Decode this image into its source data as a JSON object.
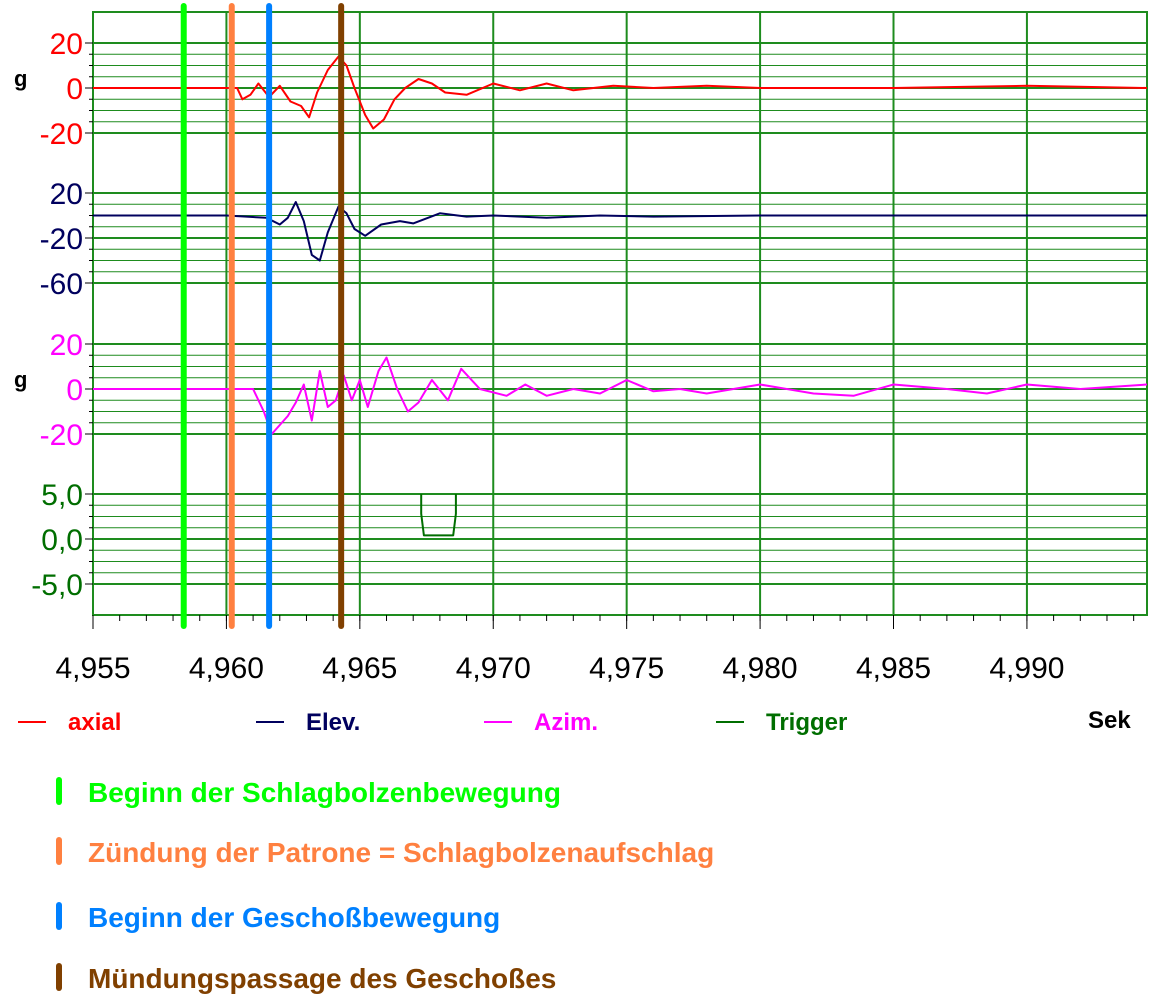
{
  "chart_data": {
    "type": "line",
    "xlabel": "Sek",
    "xlim": [
      4.955,
      4.9945
    ],
    "x_ticks": [
      "4,955",
      "4,960",
      "4,965",
      "4,970",
      "4,975",
      "4,980",
      "4,985",
      "4,990"
    ],
    "grid": true,
    "grid_color": "#1e8c1e",
    "series": [
      {
        "key": "axial",
        "name": "axial",
        "color": "#ff0000",
        "unit": "g",
        "y_ticks": [
          "20",
          "0",
          "-20"
        ],
        "ylim": [
          -20,
          20
        ],
        "points": [
          [
            4.955,
            0
          ],
          [
            4.9604,
            0
          ],
          [
            4.9606,
            -5
          ],
          [
            4.9609,
            -3
          ],
          [
            4.9612,
            2
          ],
          [
            4.9616,
            -4
          ],
          [
            4.962,
            1
          ],
          [
            4.9624,
            -6
          ],
          [
            4.9628,
            -8
          ],
          [
            4.9631,
            -13
          ],
          [
            4.9634,
            -2
          ],
          [
            4.9638,
            8
          ],
          [
            4.9642,
            14
          ],
          [
            4.9645,
            10
          ],
          [
            4.9648,
            0
          ],
          [
            4.9652,
            -12
          ],
          [
            4.9655,
            -18
          ],
          [
            4.9659,
            -14
          ],
          [
            4.9663,
            -5
          ],
          [
            4.9667,
            0
          ],
          [
            4.9672,
            4
          ],
          [
            4.9677,
            2
          ],
          [
            4.9682,
            -2
          ],
          [
            4.969,
            -3
          ],
          [
            4.97,
            2
          ],
          [
            4.971,
            -1
          ],
          [
            4.972,
            2
          ],
          [
            4.973,
            -1
          ],
          [
            4.9745,
            1
          ],
          [
            4.976,
            0
          ],
          [
            4.978,
            1
          ],
          [
            4.98,
            0
          ],
          [
            4.985,
            0
          ],
          [
            4.99,
            1
          ],
          [
            4.9945,
            0
          ]
        ]
      },
      {
        "key": "elev",
        "name": "Elev.",
        "color": "#00005e",
        "unit": "",
        "y_ticks": [
          "20",
          "-20",
          "-60"
        ],
        "ylim": [
          -60,
          20
        ],
        "points": [
          [
            4.955,
            0
          ],
          [
            4.96,
            0
          ],
          [
            4.9615,
            -2
          ],
          [
            4.962,
            -8
          ],
          [
            4.9623,
            -2
          ],
          [
            4.9626,
            12
          ],
          [
            4.9629,
            -5
          ],
          [
            4.9632,
            -35
          ],
          [
            4.9635,
            -40
          ],
          [
            4.9638,
            -15
          ],
          [
            4.9642,
            8
          ],
          [
            4.9645,
            2
          ],
          [
            4.9648,
            -12
          ],
          [
            4.9652,
            -18
          ],
          [
            4.9658,
            -8
          ],
          [
            4.9665,
            -5
          ],
          [
            4.967,
            -7
          ],
          [
            4.968,
            2
          ],
          [
            4.969,
            -1
          ],
          [
            4.97,
            0
          ],
          [
            4.972,
            -2
          ],
          [
            4.974,
            0
          ],
          [
            4.976,
            -1
          ],
          [
            4.98,
            0
          ],
          [
            4.985,
            0
          ],
          [
            4.99,
            0
          ],
          [
            4.9945,
            0
          ]
        ]
      },
      {
        "key": "azim",
        "name": "Azim.",
        "color": "#ff00ff",
        "unit": "g",
        "y_ticks": [
          "20",
          "0",
          "-20"
        ],
        "ylim": [
          -20,
          20
        ],
        "points": [
          [
            4.955,
            0
          ],
          [
            4.961,
            0
          ],
          [
            4.9614,
            -10
          ],
          [
            4.9617,
            -20
          ],
          [
            4.962,
            -16
          ],
          [
            4.9623,
            -12
          ],
          [
            4.9626,
            -6
          ],
          [
            4.9629,
            2
          ],
          [
            4.9632,
            -14
          ],
          [
            4.9635,
            8
          ],
          [
            4.9638,
            -8
          ],
          [
            4.9641,
            -5
          ],
          [
            4.9644,
            6
          ],
          [
            4.9647,
            -5
          ],
          [
            4.965,
            4
          ],
          [
            4.9653,
            -8
          ],
          [
            4.9657,
            8
          ],
          [
            4.966,
            14
          ],
          [
            4.9664,
            0
          ],
          [
            4.9668,
            -10
          ],
          [
            4.9672,
            -6
          ],
          [
            4.9677,
            4
          ],
          [
            4.9683,
            -5
          ],
          [
            4.9688,
            9
          ],
          [
            4.9695,
            0
          ],
          [
            4.9705,
            -3
          ],
          [
            4.9712,
            2
          ],
          [
            4.972,
            -3
          ],
          [
            4.973,
            0
          ],
          [
            4.974,
            -2
          ],
          [
            4.975,
            4
          ],
          [
            4.976,
            -1
          ],
          [
            4.977,
            0
          ],
          [
            4.978,
            -2
          ],
          [
            4.98,
            2
          ],
          [
            4.981,
            0
          ],
          [
            4.982,
            -2
          ],
          [
            4.9835,
            -3
          ],
          [
            4.985,
            2
          ],
          [
            4.987,
            0
          ],
          [
            4.9885,
            -2
          ],
          [
            4.99,
            2
          ],
          [
            4.992,
            0
          ],
          [
            4.9945,
            2
          ]
        ]
      },
      {
        "key": "trigger",
        "name": "Trigger",
        "color": "#006e00",
        "unit": "",
        "y_ticks": [
          "5,0",
          "0,0",
          "-5,0"
        ],
        "ylim": [
          -5,
          5
        ],
        "points": [
          [
            4.9673,
            5
          ],
          [
            4.9673,
            2.8
          ],
          [
            4.9674,
            0.4
          ],
          [
            4.9685,
            0.4
          ],
          [
            4.9686,
            2.8
          ],
          [
            4.9686,
            5
          ]
        ]
      }
    ],
    "markers": [
      {
        "x": 4.9584,
        "color": "#00ff00",
        "label": "Beginn der Schlagbolzenbewegung"
      },
      {
        "x": 4.9602,
        "color": "#ff8040",
        "label": "Zündung der Patrone = Schlagbolzenaufschlag"
      },
      {
        "x": 4.9616,
        "color": "#0080ff",
        "label": "Beginn der Geschoßbewegung"
      },
      {
        "x": 4.9643,
        "color": "#804000",
        "label": "Mündungspassage des Geschoßes"
      }
    ]
  }
}
